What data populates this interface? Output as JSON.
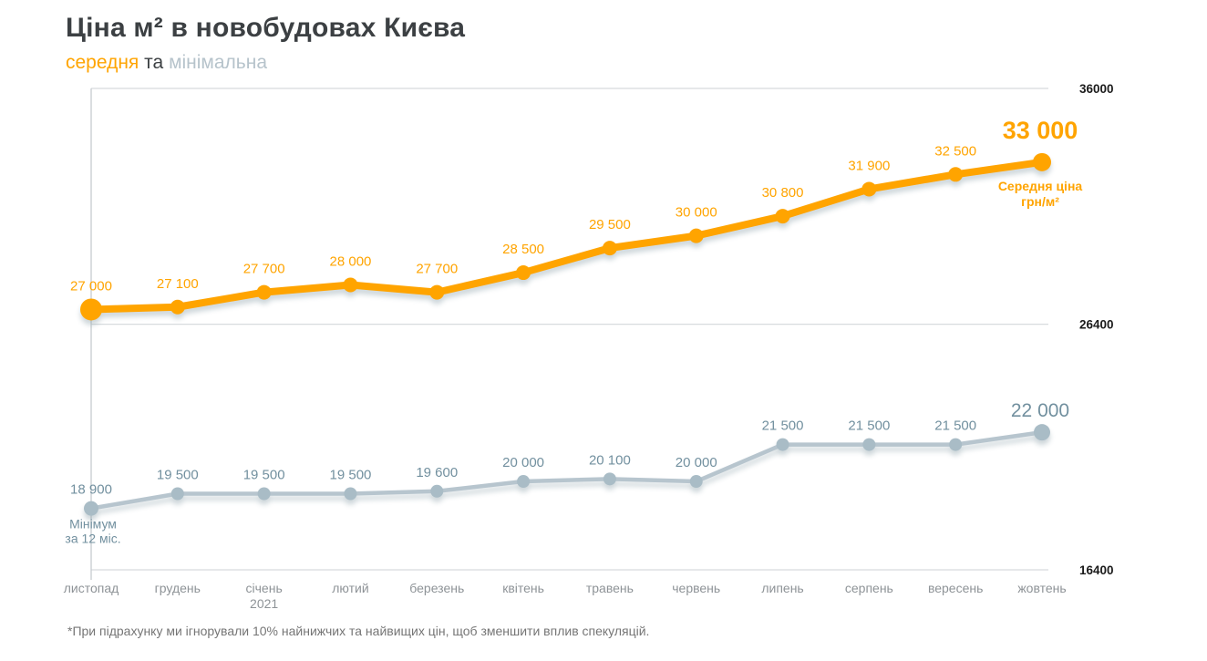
{
  "page": {
    "title": "Ціна м² в новобудовах Києва",
    "subtitle": {
      "average": "середня",
      "connector": "та",
      "minimum": "мінімальна"
    },
    "footnote": "*При підрахунку ми ігнорували 10% найнижчих та найвищих цін, щоб зменшити вплив спекуляцій."
  },
  "colors": {
    "average": "#FFA400",
    "minimum_line": "#B7C5CE",
    "minimum_point": "#A9BCC6",
    "minimum_text": "#72909F",
    "subtitle_minimum": "#B6C3CB",
    "title_text": "#3C4043",
    "grid_line": "#D7DBDE",
    "axis_line": "#C5CBCF",
    "y_tick_text": "#1B1B1B",
    "x_tick_text": "#8E9397",
    "footnote_text": "#757575"
  },
  "chart_data": {
    "type": "line",
    "title": "Ціна м² в новобудовах Києва",
    "subtitle": "середня та мінімальна",
    "categories": [
      {
        "label": "листопад"
      },
      {
        "label": "грудень"
      },
      {
        "label": "січень",
        "sub": "2021"
      },
      {
        "label": "лютий"
      },
      {
        "label": "березень"
      },
      {
        "label": "квітень"
      },
      {
        "label": "травень"
      },
      {
        "label": "червень"
      },
      {
        "label": "липень"
      },
      {
        "label": "серпень"
      },
      {
        "label": "вересень"
      },
      {
        "label": "жовтень"
      }
    ],
    "series": [
      {
        "name": "Середня ціна грн/м²",
        "values": [
          27000,
          27100,
          27700,
          28000,
          27700,
          28500,
          29500,
          30000,
          30800,
          31900,
          32500,
          33000
        ]
      },
      {
        "name": "Мінімум за 12 міс.",
        "values": [
          18900,
          19500,
          19500,
          19500,
          19600,
          20000,
          20100,
          20000,
          21500,
          21500,
          21500,
          22000
        ]
      }
    ],
    "annotations": {
      "average_end_label": "33 000",
      "average_series_label_lines": [
        "Середня ціна",
        "грн/м²"
      ],
      "minimum_end_label": "22 000",
      "minimum_series_label_lines": [
        "Мінімум",
        "за 12 міс."
      ]
    },
    "y_axis": {
      "min": 16400,
      "max": 36000,
      "ticks": [
        36000,
        26400,
        16400
      ]
    },
    "xlabel": "",
    "ylabel": "грн/м²",
    "grid": "horizontal",
    "legend": "inline-annotations"
  }
}
